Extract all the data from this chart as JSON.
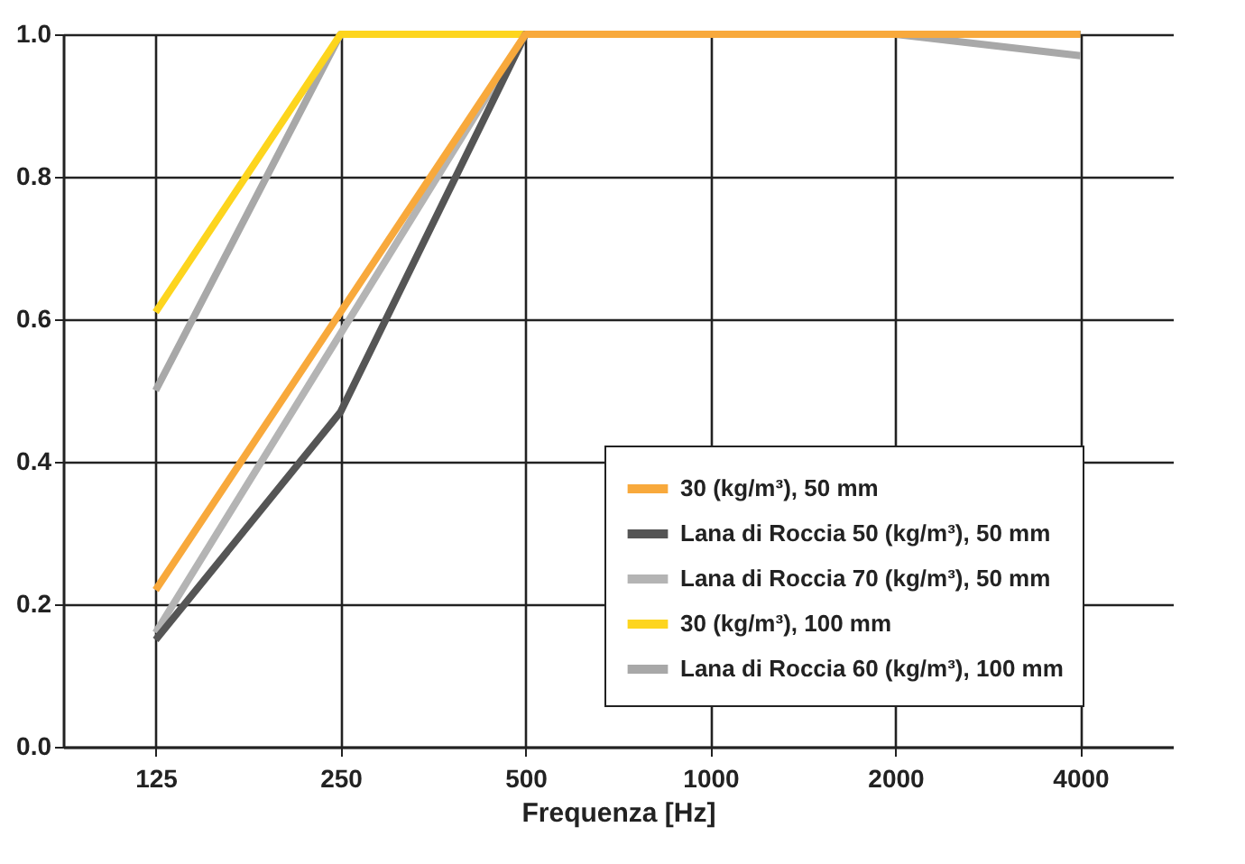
{
  "chart_data": {
    "type": "line",
    "xlabel": "Frequenza [Hz]",
    "categories": [
      "125",
      "250",
      "500",
      "1000",
      "2000",
      "4000"
    ],
    "ylim": [
      0,
      1
    ],
    "yticks": [
      {
        "value": 0,
        "label": "0.0"
      },
      {
        "value": 0.2,
        "label": "0.2"
      },
      {
        "value": 0.4,
        "label": "0.4"
      },
      {
        "value": 0.6,
        "label": "0.6"
      },
      {
        "value": 0.8,
        "label": "0.8"
      },
      {
        "value": 1,
        "label": "1.0"
      }
    ],
    "grid": true,
    "legend": "bottom right",
    "line_style": "solid",
    "marker": "none",
    "series": [
      {
        "name": "30 (kg/m³), 50 mm",
        "color": "#f8a93c",
        "values": [
          0.22,
          0.61,
          1.0,
          1.0,
          1.0,
          1.0
        ]
      },
      {
        "name": "Lana di Roccia 50 (kg/m³), 50 mm",
        "color": "#555555",
        "values": [
          0.15,
          0.47,
          1.0,
          1.0,
          1.0,
          1.0
        ]
      },
      {
        "name": "Lana di Roccia 70 (kg/m³), 50 mm",
        "color": "#b4b4b4",
        "values": [
          0.16,
          0.58,
          1.0,
          1.0,
          1.0,
          1.0
        ]
      },
      {
        "name": "30 (kg/m³), 100 mm",
        "color": "#fdd51e",
        "values": [
          0.61,
          1.0,
          1.0,
          null,
          null,
          null
        ]
      },
      {
        "name": "Lana di Roccia 60 (kg/m³), 100 mm",
        "color": "#a8a8a8",
        "values": [
          0.5,
          1.0,
          1.0,
          1.0,
          1.0,
          0.97
        ]
      }
    ]
  }
}
